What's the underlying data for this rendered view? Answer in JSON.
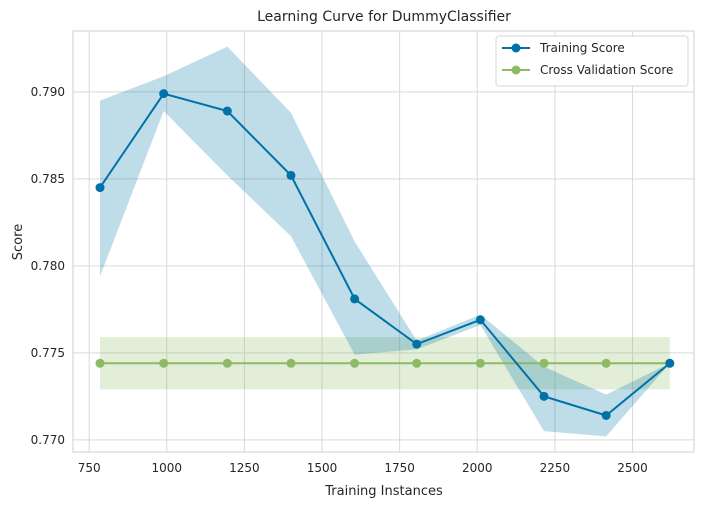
{
  "chart_data": {
    "type": "line",
    "title": "Learning Curve for DummyClassifier",
    "xlabel": "Training Instances",
    "ylabel": "Score",
    "xlim": [
      698,
      2698
    ],
    "ylim": [
      0.7693,
      0.7935
    ],
    "xticks": [
      750,
      1000,
      1250,
      1500,
      1750,
      2000,
      2250,
      2500
    ],
    "xtick_labels": [
      "750",
      "1000",
      "1250",
      "1500",
      "1750",
      "2000",
      "2250",
      "2500"
    ],
    "yticks": [
      0.77,
      0.775,
      0.78,
      0.785,
      0.79
    ],
    "ytick_labels": [
      "0.770",
      "0.775",
      "0.780",
      "0.785",
      "0.790"
    ],
    "grid": true,
    "legend_position": "top-right",
    "x": [
      785,
      990,
      1195,
      1400,
      1605,
      1805,
      2010,
      2215,
      2415,
      2620
    ],
    "series": [
      {
        "name": "Training Score",
        "color": "#0072a8",
        "values": [
          0.7845,
          0.7899,
          0.7889,
          0.7852,
          0.7781,
          0.7755,
          0.7769,
          0.7725,
          0.7714,
          0.7744
        ],
        "band_upper": [
          0.7895,
          0.7909,
          0.7926,
          0.7888,
          0.7814,
          0.7757,
          0.7772,
          0.7742,
          0.7726,
          0.7744
        ],
        "band_lower": [
          0.7794,
          0.7889,
          0.7852,
          0.7817,
          0.7749,
          0.7752,
          0.7766,
          0.7705,
          0.7702,
          0.7744
        ]
      },
      {
        "name": "Cross Validation Score",
        "color": "#8cba65",
        "values": [
          0.7744,
          0.7744,
          0.7744,
          0.7744,
          0.7744,
          0.7744,
          0.7744,
          0.7744,
          0.7744,
          0.7744
        ],
        "band_upper": [
          0.7759,
          0.7759,
          0.7759,
          0.7759,
          0.7759,
          0.7759,
          0.7759,
          0.7759,
          0.7759,
          0.7759
        ],
        "band_lower": [
          0.7729,
          0.7729,
          0.7729,
          0.7729,
          0.7729,
          0.7729,
          0.7729,
          0.7729,
          0.7729,
          0.7729
        ]
      }
    ]
  }
}
